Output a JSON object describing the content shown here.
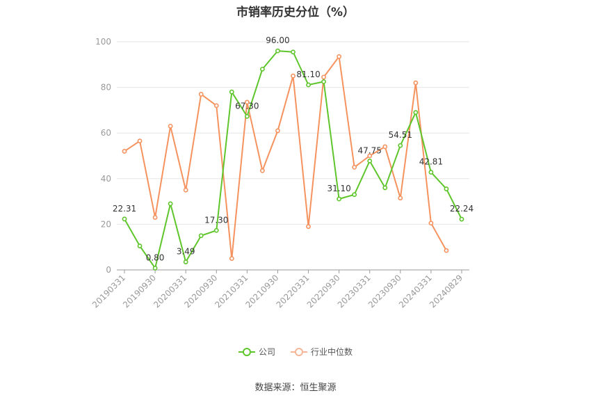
{
  "chart_data": {
    "type": "line",
    "title": "市销率历史分位（%）",
    "x": [
      "20190331",
      "20190630",
      "20190930",
      "20191231",
      "20200331",
      "20200630",
      "20200930",
      "20201231",
      "20210331",
      "20210630",
      "20210930",
      "20211231",
      "20220331",
      "20220630",
      "20220930",
      "20221231",
      "20230331",
      "20230630",
      "20230930",
      "20231231",
      "20240331",
      "20240630",
      "20240829"
    ],
    "x_tick_labels": [
      "20190331",
      "20190930",
      "20200331",
      "20200930",
      "20210331",
      "20210930",
      "20220331",
      "20220930",
      "20230331",
      "20230930",
      "20240331",
      "20240829"
    ],
    "ylim": [
      0,
      100
    ],
    "y_ticks": [
      0,
      20,
      40,
      60,
      80,
      100
    ],
    "grid": true,
    "legend_position": "bottom",
    "series": [
      {
        "name": "公司",
        "color": "#5ec52b",
        "values": [
          22.31,
          10.5,
          0.8,
          29.0,
          3.49,
          15.0,
          17.3,
          78.0,
          67.3,
          88.0,
          96.0,
          95.5,
          81.1,
          82.5,
          31.1,
          33.0,
          47.75,
          36.0,
          54.51,
          69.0,
          42.81,
          35.5,
          22.24
        ],
        "labels": [
          "22.31",
          null,
          "0.80",
          null,
          "3.49",
          null,
          "17.30",
          null,
          "67.30",
          null,
          "96.00",
          null,
          "81.10",
          null,
          "31.10",
          null,
          "47.75",
          null,
          "54.51",
          null,
          "42.81",
          null,
          "22.24"
        ]
      },
      {
        "name": "行业中位数",
        "color": "#f5925e",
        "values": [
          52.0,
          56.5,
          23.0,
          63.0,
          35.0,
          77.0,
          72.0,
          5.0,
          73.5,
          43.5,
          61.0,
          85.0,
          19.0,
          84.5,
          93.5,
          45.0,
          50.0,
          54.0,
          31.5,
          82.0,
          20.5,
          8.5,
          null
        ]
      }
    ]
  },
  "source": "数据来源：恒生聚源"
}
